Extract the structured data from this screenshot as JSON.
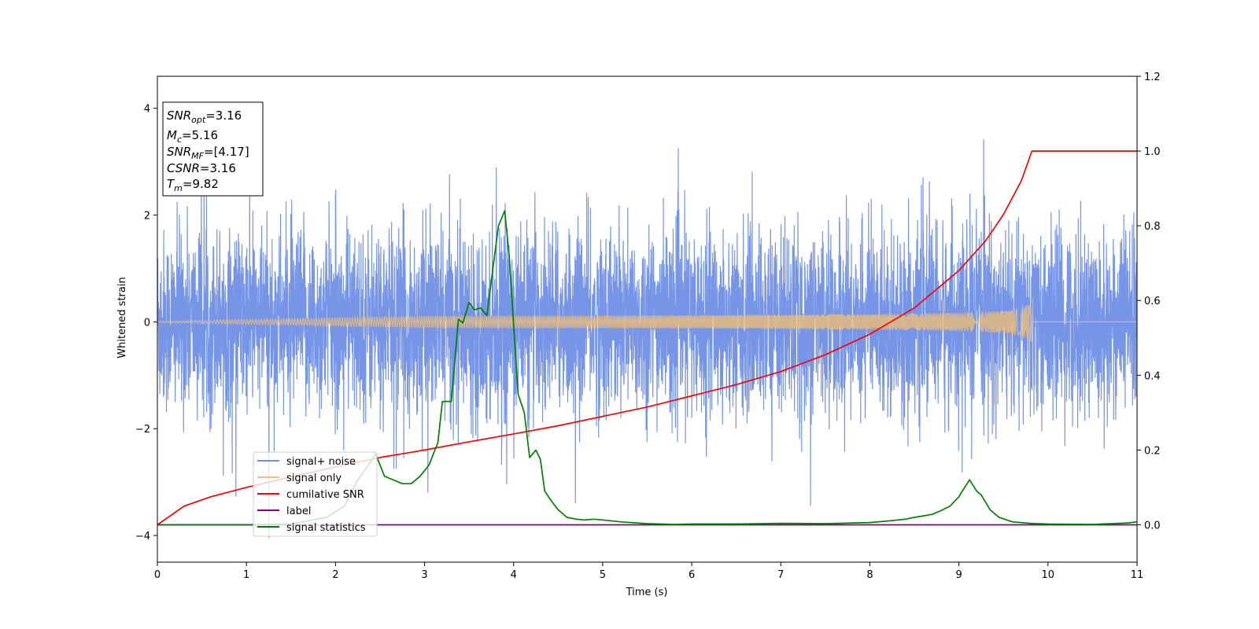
{
  "chart_data": {
    "type": "line",
    "xlabel": "Time (s)",
    "ylabel": "Whitened strain",
    "xlim": [
      0,
      11
    ],
    "ylim": [
      -4.5,
      4.6
    ],
    "y2lim": [
      -0.1,
      1.2
    ],
    "xticks": [
      "0",
      "1",
      "2",
      "3",
      "4",
      "5",
      "6",
      "7",
      "8",
      "9",
      "10",
      "11"
    ],
    "yticks": [
      "4",
      "2",
      "0",
      "−2",
      "−4"
    ],
    "y2ticks": [
      "1.2",
      "1.0",
      "0.8",
      "0.6",
      "0.4",
      "0.2",
      "0.0"
    ],
    "grid": false,
    "legend_position": "lower-left",
    "info_box": {
      "snr_opt": {
        "var": "SNR",
        "sub": "opt",
        "value": "=3.16"
      },
      "mc": {
        "var": "M",
        "sub": "c",
        "value": "=5.16"
      },
      "snr_mf": {
        "var": "SNR",
        "sub": "MF",
        "value": "=[4.17]"
      },
      "csnr": {
        "var": "CSNR",
        "value": "=3.16"
      },
      "tm": {
        "var": "T",
        "sub": "m",
        "value": "=9.82"
      }
    },
    "series": [
      {
        "name": "signal+ noise",
        "color": "#6f8fe6",
        "axis": "left",
        "kind": "noise",
        "amplitude_std": 1.0
      },
      {
        "name": "signal only",
        "color": "#f5c070",
        "axis": "left",
        "kind": "chirp",
        "merger_time": 9.82,
        "peak_amplitude": 0.38
      },
      {
        "name": "cumilative SNR",
        "color": "#ff0000",
        "axis": "right",
        "x": [
          0,
          0.3,
          0.6,
          1,
          1.5,
          2,
          2.5,
          3,
          3.5,
          4,
          4.5,
          5,
          5.5,
          6,
          6.5,
          7,
          7.5,
          8,
          8.5,
          9,
          9.3,
          9.5,
          9.7,
          9.82,
          10,
          10.5,
          11
        ],
        "values": [
          0.0,
          0.05,
          0.075,
          0.1,
          0.128,
          0.155,
          0.18,
          0.2,
          0.222,
          0.243,
          0.265,
          0.29,
          0.315,
          0.345,
          0.375,
          0.41,
          0.455,
          0.51,
          0.58,
          0.68,
          0.76,
          0.83,
          0.92,
          1.0,
          1.0,
          1.0,
          1.0
        ]
      },
      {
        "name": "label",
        "color": "#800080",
        "axis": "right",
        "x": [
          0,
          11
        ],
        "values": [
          0.0,
          0.0
        ]
      },
      {
        "name": "signal statistics",
        "color": "#008000",
        "axis": "right",
        "x": [
          0,
          1,
          1.5,
          1.9,
          2.1,
          2.25,
          2.4,
          2.45,
          2.55,
          2.65,
          2.75,
          2.85,
          2.95,
          3.05,
          3.15,
          3.2,
          3.3,
          3.38,
          3.43,
          3.5,
          3.56,
          3.63,
          3.7,
          3.77,
          3.83,
          3.9,
          3.95,
          4.05,
          4.12,
          4.18,
          4.25,
          4.3,
          4.35,
          4.42,
          4.5,
          4.6,
          4.7,
          4.8,
          4.9,
          5.0,
          5.2,
          5.5,
          5.8,
          6.0,
          6.5,
          7.0,
          7.5,
          8.0,
          8.2,
          8.4,
          8.5,
          8.6,
          8.7,
          8.8,
          8.9,
          9.0,
          9.05,
          9.12,
          9.2,
          9.25,
          9.35,
          9.45,
          9.6,
          9.8,
          10.0,
          10.5,
          10.9,
          11.0
        ],
        "values": [
          0.0,
          0.0,
          0.002,
          0.02,
          0.05,
          0.12,
          0.17,
          0.19,
          0.13,
          0.12,
          0.11,
          0.11,
          0.13,
          0.16,
          0.22,
          0.33,
          0.33,
          0.55,
          0.54,
          0.595,
          0.575,
          0.58,
          0.56,
          0.69,
          0.8,
          0.84,
          0.72,
          0.35,
          0.3,
          0.18,
          0.2,
          0.175,
          0.09,
          0.065,
          0.04,
          0.02,
          0.015,
          0.013,
          0.015,
          0.013,
          0.008,
          0.003,
          0.001,
          0.002,
          0.002,
          0.004,
          0.003,
          0.006,
          0.01,
          0.015,
          0.02,
          0.024,
          0.028,
          0.038,
          0.05,
          0.075,
          0.095,
          0.12,
          0.09,
          0.08,
          0.04,
          0.02,
          0.008,
          0.004,
          0.002,
          0.001,
          0.005,
          0.008
        ]
      }
    ]
  }
}
